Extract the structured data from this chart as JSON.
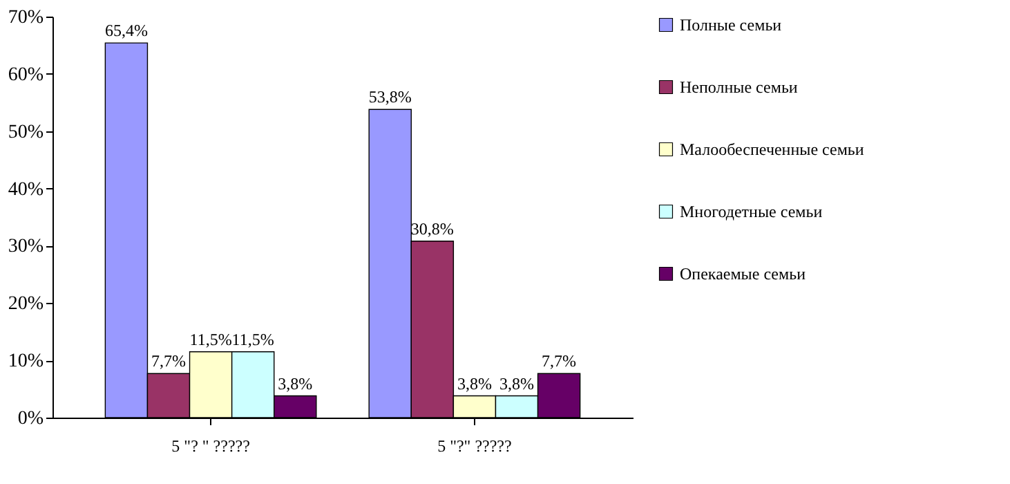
{
  "chart_data": {
    "type": "bar",
    "categories": [
      "5 \"? \" ?????",
      "5 \"?\" ?????"
    ],
    "series": [
      {
        "name": "Полные семьи",
        "color": "#9999ff",
        "values": [
          65.4,
          53.8
        ],
        "value_labels": [
          "65,4%",
          "53,8%"
        ]
      },
      {
        "name": "Неполные семьи",
        "color": "#993366",
        "values": [
          7.7,
          30.8
        ],
        "value_labels": [
          "7,7%",
          "30,8%"
        ]
      },
      {
        "name": "Малообеспеченные семьи",
        "color": "#ffffcc",
        "values": [
          11.5,
          3.8
        ],
        "value_labels": [
          "11,5%",
          "3,8%"
        ]
      },
      {
        "name": "Многодетные семьи",
        "color": "#ccffff",
        "values": [
          11.5,
          3.8
        ],
        "value_labels": [
          "11,5%",
          "3,8%"
        ]
      },
      {
        "name": "Опекаемые семьи",
        "color": "#660066",
        "values": [
          3.8,
          7.7
        ],
        "value_labels": [
          "3,8%",
          "7,7%"
        ]
      }
    ],
    "ylim": [
      0,
      70
    ],
    "yticks": [
      {
        "value": 0,
        "label": "0%"
      },
      {
        "value": 10,
        "label": "10%"
      },
      {
        "value": 20,
        "label": "20%"
      },
      {
        "value": 30,
        "label": "30%"
      },
      {
        "value": 40,
        "label": "40%"
      },
      {
        "value": 50,
        "label": "50%"
      },
      {
        "value": 60,
        "label": "60%"
      },
      {
        "value": 70,
        "label": "70%"
      }
    ],
    "legend": "right",
    "grid": false
  }
}
